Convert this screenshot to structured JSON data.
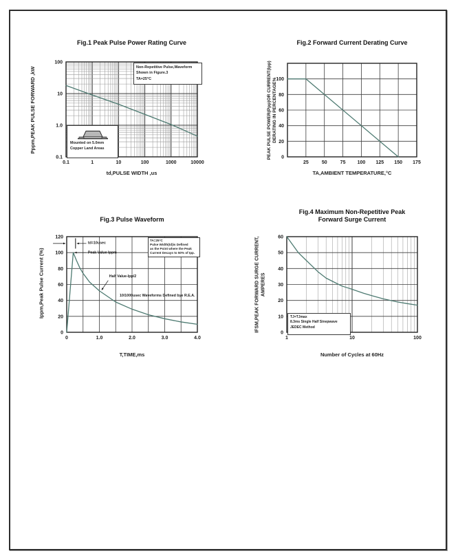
{
  "page": {
    "background": "#ffffff",
    "border_color": "#2d2d2d"
  },
  "colors": {
    "curve": "#4d7a71",
    "grid_major": "#3c3c3c",
    "grid_minor": "#999999",
    "axis_border": "#222222",
    "text": "#1a1a1a"
  },
  "chart_data": [
    {
      "id": "fig1",
      "type": "line",
      "title": "Fig.1  Peak Pulse Power Rating Curve",
      "xlabel": "td,PULSE WIDTH ,us",
      "ylabel": "Pppm,PEAK PULSE FORWARD ,kW",
      "xscale": "log",
      "yscale": "log",
      "xlim": [
        0.1,
        10000
      ],
      "ylim": [
        0.1,
        100
      ],
      "xtick_vals": [
        0.1,
        1,
        10,
        100,
        1000,
        10000
      ],
      "xtick_labels": [
        "0.1",
        "1",
        "10",
        "100",
        "1000",
        "10000"
      ],
      "ytick_vals": [
        0.1,
        1,
        10,
        100
      ],
      "ytick_labels": [
        "0.1",
        "1.0",
        "10",
        "100"
      ],
      "grid": true,
      "legend_position": "none",
      "series": [
        {
          "name": "non-repetitive peak pulse power",
          "x": [
            0.1,
            1,
            10,
            100,
            1000,
            10000
          ],
          "y": [
            18,
            9,
            4.6,
            2.2,
            1.05,
            0.45
          ]
        }
      ],
      "note_lines": [
        "Non-Repetitive  Pulse,Waveform",
        "Shown in Figure.3",
        "TA=25°C"
      ],
      "inset_lines": [
        "Mounted on 5.0mm",
        "Copper Land Areas"
      ]
    },
    {
      "id": "fig2",
      "type": "line",
      "title": "Fig.2  Forward Current Derating Curve",
      "xlabel": "TA,AMBIENT TEMPERATURE,°C",
      "ylabel_lines": [
        "PEAK PULSE POWER(Ppp)OR CURRENT(Ipp)",
        "DERATING IN PERCENTAGE%"
      ],
      "xscale": "linear",
      "yscale": "linear",
      "xlim": [
        0,
        175
      ],
      "ylim": [
        0,
        120
      ],
      "xgrid_step": 25,
      "ygrid_step": 20,
      "xtick_vals": [
        25,
        50,
        75,
        100,
        125,
        150,
        175
      ],
      "xtick_labels": [
        "25",
        "50",
        "75",
        "100",
        "125",
        "150",
        "175"
      ],
      "ytick_vals": [
        0,
        20,
        40,
        60,
        80,
        100
      ],
      "ytick_labels": [
        "0",
        "20",
        "40",
        "60",
        "80",
        "100"
      ],
      "grid": true,
      "legend_position": "none",
      "series": [
        {
          "name": "derating percentage",
          "x": [
            0,
            25,
            150
          ],
          "y": [
            100,
            100,
            0
          ]
        }
      ]
    },
    {
      "id": "fig3",
      "type": "line",
      "title": "Fig.3  Pulse Waveform",
      "xlabel": "T,TIME,ms",
      "ylabel": "Ippm,Peak Pulse Current (%)",
      "xscale": "linear",
      "yscale": "linear",
      "xlim": [
        0,
        4
      ],
      "ylim": [
        0,
        120
      ],
      "xgrid_step": 0.5,
      "ygrid_step": 20,
      "xtick_vals": [
        0,
        1,
        2,
        3,
        4
      ],
      "xtick_labels": [
        "0",
        "1.0",
        "2.0",
        "3.0",
        "4.0"
      ],
      "ytick_vals": [
        0,
        20,
        40,
        60,
        80,
        100,
        120
      ],
      "ytick_labels": [
        "0",
        "20",
        "40",
        "60",
        "80",
        "100",
        "120"
      ],
      "grid": true,
      "legend_position": "none",
      "series": [
        {
          "name": "10/1000us pulse waveform",
          "x": [
            0,
            0.2,
            0.3,
            0.4,
            0.5,
            0.7,
            1.0,
            1.5,
            2.0,
            2.5,
            3.0,
            3.5,
            4.0
          ],
          "y": [
            0,
            100,
            90,
            81,
            74,
            63,
            52,
            38,
            29,
            22,
            17,
            13,
            10
          ]
        }
      ],
      "annotations": [
        {
          "text": "td=10usec",
          "x": 0.65,
          "y": 111,
          "arrows": [
            [
              0.6,
              111.5,
              0.31,
              111.5
            ],
            [
              -0.42,
              111.5,
              -0.04,
              111.5
            ]
          ],
          "ticks": [
            [
              0.27,
              105,
              0.27,
              118
            ]
          ]
        },
        {
          "text": "Peak  Value   Ippm",
          "x": 0.65,
          "y": 99,
          "arrows": [
            [
              0.6,
              100,
              0.24,
              100
            ]
          ]
        },
        {
          "text": "Half  Value-Ipp/2",
          "x": 1.3,
          "y": 69,
          "arrows": [
            [
              1.27,
              65,
              1.07,
              53
            ]
          ]
        },
        {
          "text": "10/1000usec  Waveforms Defined bye R.E.A.",
          "x": 1.62,
          "y": 45
        }
      ],
      "note_lines": [
        "TA=25°C",
        "Pulse  Width(td)is Defined",
        "as the Point where the Peak",
        "Current Decays to 50% of Ipp."
      ]
    },
    {
      "id": "fig4",
      "type": "line",
      "title": "Fig.4  Maximum Non-Repetitive Peak Forward Surge Current",
      "title_lines": [
        "Fig.4  Maximum Non-Repetitive Peak",
        "Forward Surge Current"
      ],
      "xlabel": "Number of Cycles at 60Hz",
      "ylabel_lines": [
        "IFSM,PEAK FORWARD SURGE CURRENT,",
        "AMPERES"
      ],
      "xscale": "log",
      "yscale": "linear",
      "xlim": [
        1,
        100
      ],
      "ylim": [
        0,
        60
      ],
      "ygrid_step": 10,
      "xtick_vals": [
        1,
        10,
        100
      ],
      "xtick_labels": [
        "1",
        "10",
        "100"
      ],
      "ytick_vals": [
        0,
        10,
        20,
        30,
        40,
        50,
        60
      ],
      "ytick_labels": [
        "0",
        "10",
        "20",
        "30",
        "40",
        "50",
        "60"
      ],
      "grid": true,
      "legend_position": "none",
      "series": [
        {
          "name": "peak forward surge current",
          "x": [
            1,
            1.5,
            2,
            3,
            4,
            5,
            7,
            10,
            15,
            20,
            30,
            50,
            70,
            100
          ],
          "y": [
            60,
            50,
            45,
            38,
            34,
            32,
            29,
            27,
            24.5,
            23,
            21,
            19,
            18,
            17
          ]
        }
      ],
      "note_lines": [
        "TJ=TJmax",
        "8.3ms Single Half  Sinepwave",
        "JEDEC Method"
      ]
    }
  ]
}
